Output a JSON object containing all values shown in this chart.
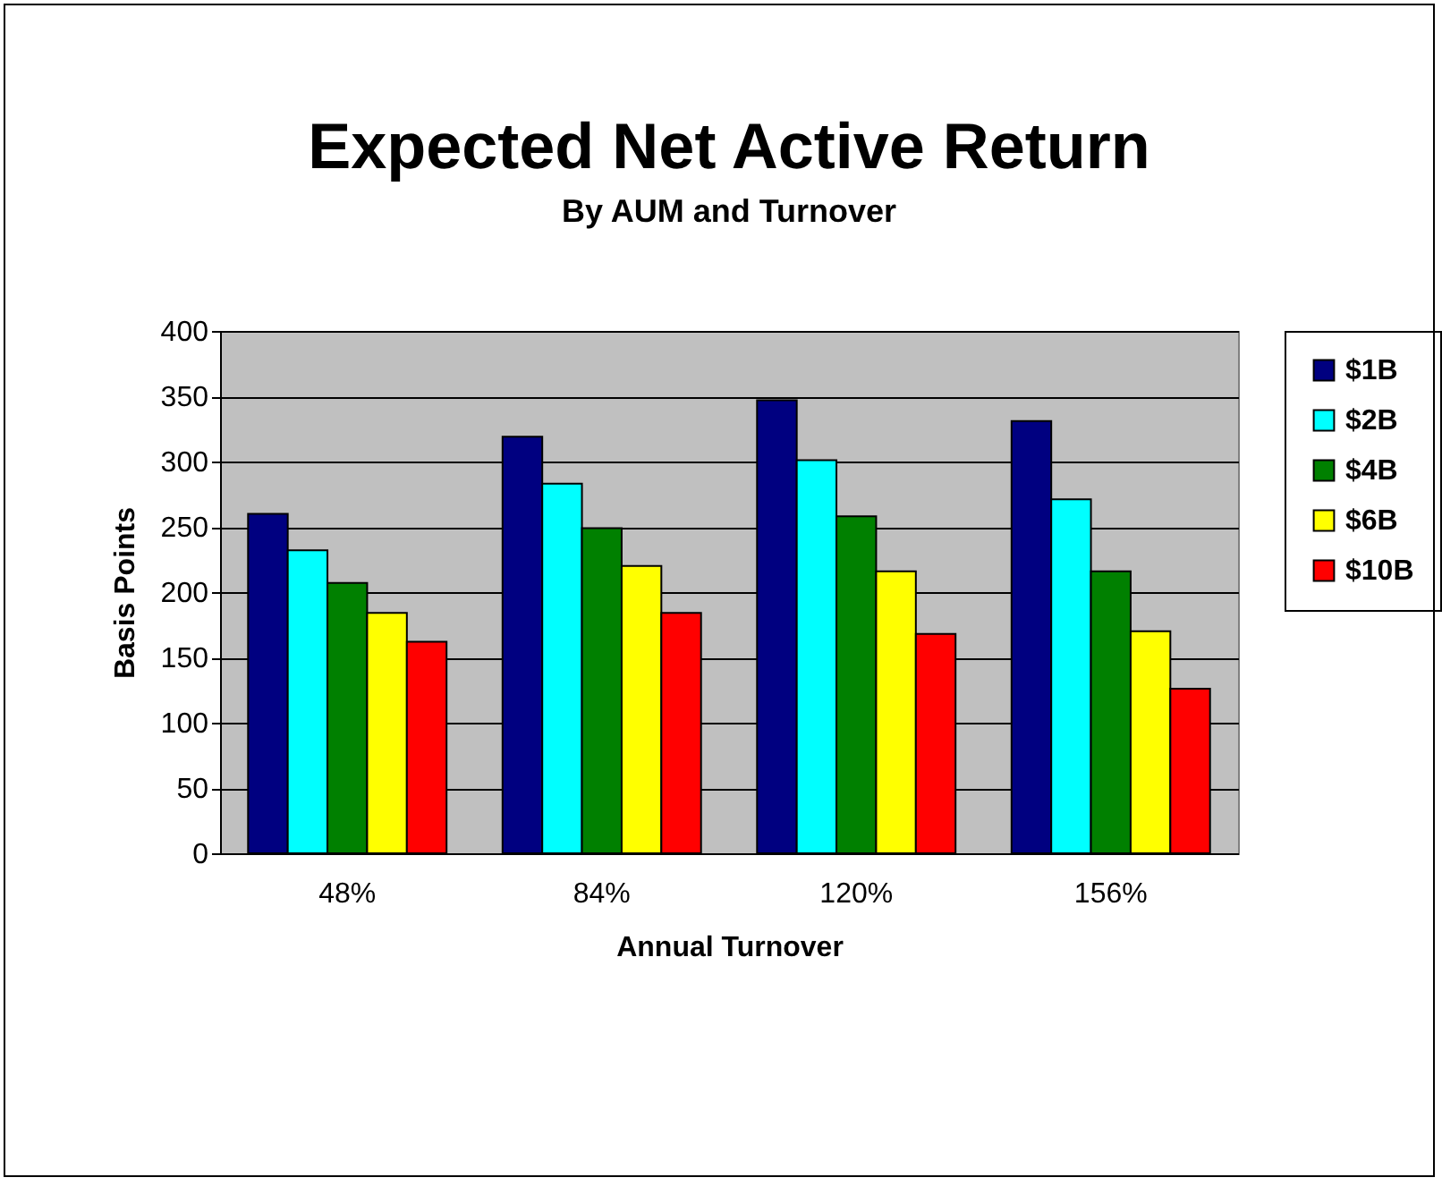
{
  "chart_data": {
    "type": "bar",
    "title": "Expected Net Active Return",
    "subtitle": "By AUM and Turnover",
    "xlabel": "Annual Turnover",
    "ylabel": "Basis Points",
    "categories": [
      "48%",
      "84%",
      "120%",
      "156%"
    ],
    "series": [
      {
        "name": "$1B",
        "color": "#000080",
        "values": [
          260,
          319,
          347,
          331
        ]
      },
      {
        "name": "$2B",
        "color": "#00ffff",
        "values": [
          232,
          283,
          301,
          271
        ]
      },
      {
        "name": "$4B",
        "color": "#008000",
        "values": [
          207,
          249,
          258,
          216
        ]
      },
      {
        "name": "$6B",
        "color": "#ffff00",
        "values": [
          184,
          220,
          216,
          170
        ]
      },
      {
        "name": "$10B",
        "color": "#ff0000",
        "values": [
          162,
          184,
          168,
          126
        ]
      }
    ],
    "ylim": [
      0,
      400
    ],
    "yticks": [
      0,
      50,
      100,
      150,
      200,
      250,
      300,
      350,
      400
    ],
    "grid": "y",
    "legend": "right"
  }
}
